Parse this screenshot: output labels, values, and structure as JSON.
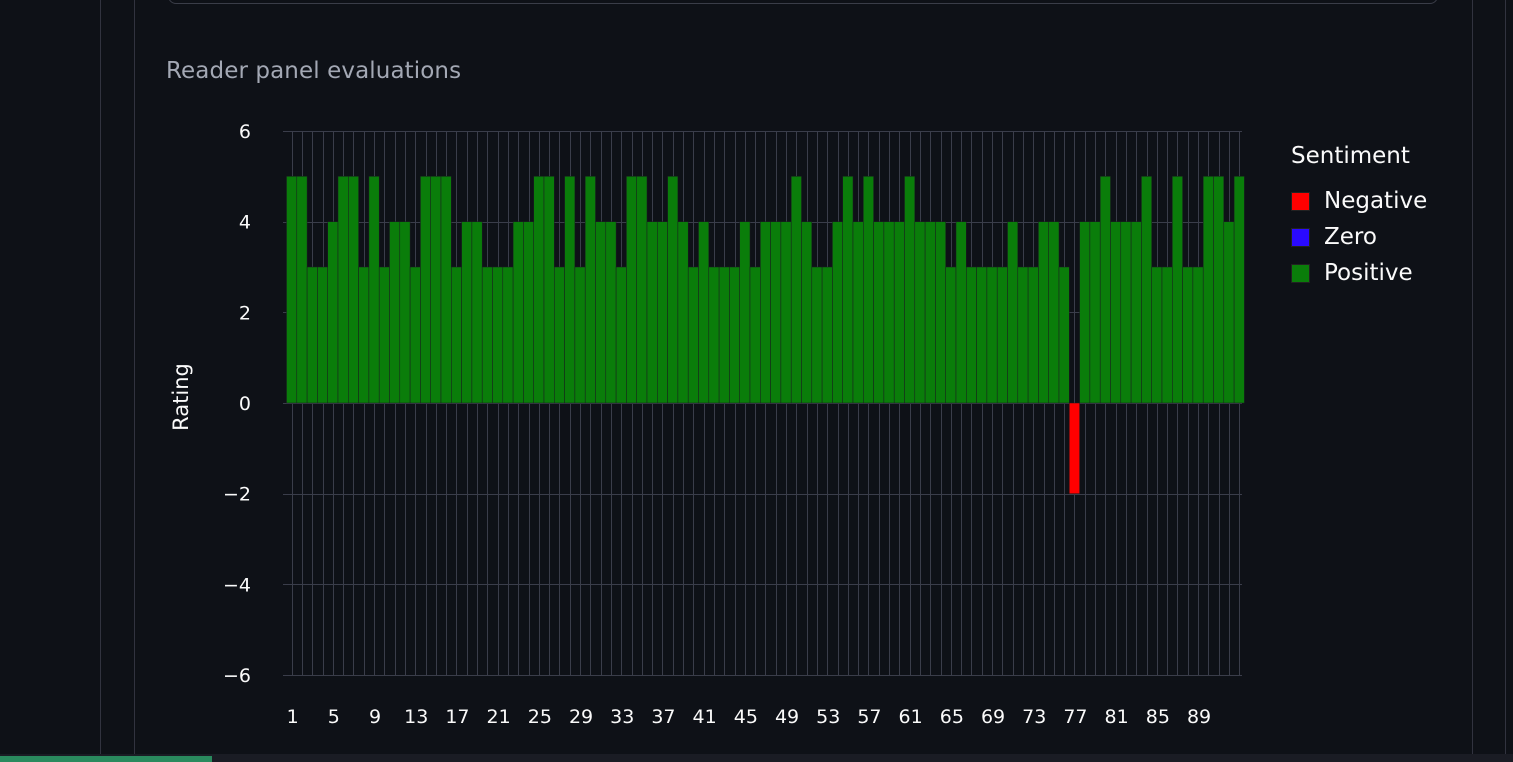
{
  "chart_data": {
    "type": "bar",
    "title": "Reader panel evaluations",
    "xlabel": "",
    "ylabel": "Rating",
    "ylim": [
      -6,
      6
    ],
    "yticks": [
      6,
      4,
      2,
      0,
      -2,
      -4,
      -6
    ],
    "ytick_labels": [
      "6",
      "4",
      "2",
      "0",
      "−2",
      "−4",
      "−6"
    ],
    "xticks": [
      "1",
      "5",
      "9",
      "13",
      "17",
      "21",
      "25",
      "29",
      "33",
      "37",
      "41",
      "45",
      "49",
      "53",
      "57",
      "61",
      "65",
      "69",
      "73",
      "77",
      "81",
      "85",
      "89"
    ],
    "x": [
      1,
      2,
      3,
      4,
      5,
      6,
      7,
      8,
      9,
      10,
      11,
      12,
      13,
      14,
      15,
      16,
      17,
      18,
      19,
      20,
      21,
      22,
      23,
      24,
      25,
      26,
      27,
      28,
      29,
      30,
      31,
      32,
      33,
      34,
      35,
      36,
      37,
      38,
      39,
      40,
      41,
      42,
      43,
      44,
      45,
      46,
      47,
      48,
      49,
      50,
      51,
      52,
      53,
      54,
      55,
      56,
      57,
      58,
      59,
      60,
      61,
      62,
      63,
      64,
      65,
      66,
      67,
      68,
      69,
      70,
      71,
      72,
      73,
      74,
      75,
      76,
      77,
      78,
      79,
      80,
      81,
      82,
      83,
      84,
      85,
      86,
      87,
      88,
      89,
      90,
      91,
      92,
      93
    ],
    "values": [
      5,
      5,
      3,
      3,
      4,
      5,
      5,
      3,
      5,
      3,
      4,
      4,
      3,
      5,
      5,
      5,
      3,
      4,
      4,
      3,
      3,
      3,
      4,
      4,
      5,
      5,
      3,
      5,
      3,
      5,
      4,
      4,
      3,
      5,
      5,
      4,
      4,
      5,
      4,
      3,
      4,
      3,
      3,
      3,
      4,
      3,
      4,
      4,
      4,
      5,
      4,
      3,
      3,
      4,
      5,
      4,
      5,
      4,
      4,
      4,
      5,
      4,
      4,
      4,
      3,
      4,
      3,
      3,
      3,
      3,
      4,
      3,
      3,
      4,
      4,
      3,
      -2,
      4,
      4,
      5,
      4,
      4,
      4,
      5,
      3,
      3,
      5,
      3,
      3,
      5,
      5,
      4,
      5
    ],
    "legend_title": "Sentiment",
    "legend_position": "right",
    "grid": true,
    "series": [
      {
        "name": "Negative",
        "color": "#ff0000"
      },
      {
        "name": "Zero",
        "color": "#2a0aff"
      },
      {
        "name": "Positive",
        "color": "#0a7d0a"
      }
    ]
  }
}
